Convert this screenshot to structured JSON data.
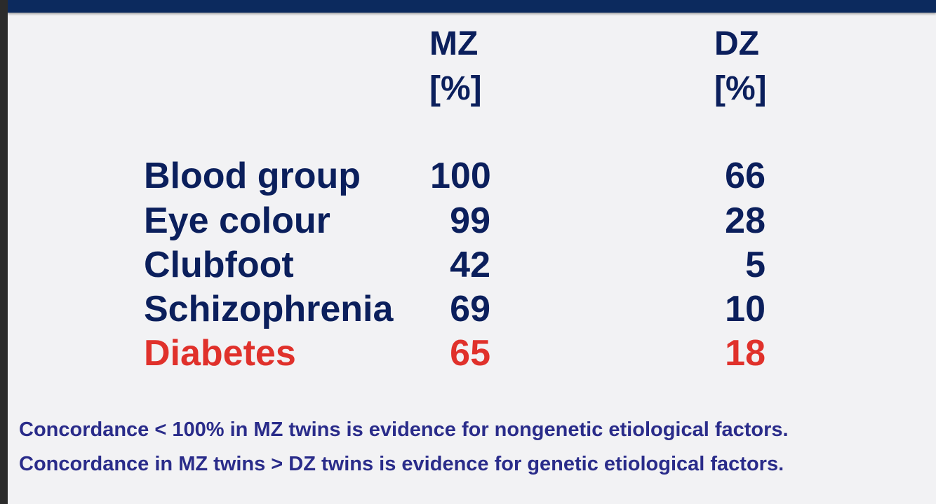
{
  "header": {
    "mz_label": "MZ",
    "mz_unit": "[%]",
    "dz_label": "DZ",
    "dz_unit": "[%]"
  },
  "colors": {
    "top_bar": "#0c2a5e",
    "text": "#0b1f5c",
    "highlight": "#e0312b",
    "footer_text": "#2a2c8a",
    "background": "#f2f2f4"
  },
  "rows": [
    {
      "trait": "Blood group",
      "mz": "100",
      "dz": "66",
      "highlight": false
    },
    {
      "trait": "Eye colour",
      "mz": "99",
      "dz": "28",
      "highlight": false
    },
    {
      "trait": "Clubfoot",
      "mz": "42",
      "dz": "5",
      "highlight": false
    },
    {
      "trait": "Schizophrenia",
      "mz": "69",
      "dz": "10",
      "highlight": false
    },
    {
      "trait": "Diabetes",
      "mz": "65",
      "dz": "18",
      "highlight": true
    }
  ],
  "footer": {
    "line1": "Concordance < 100% in MZ twins is evidence for nongenetic etiological factors.",
    "line2": "Concordance in MZ twins > DZ twins is evidence for genetic etiological factors."
  }
}
